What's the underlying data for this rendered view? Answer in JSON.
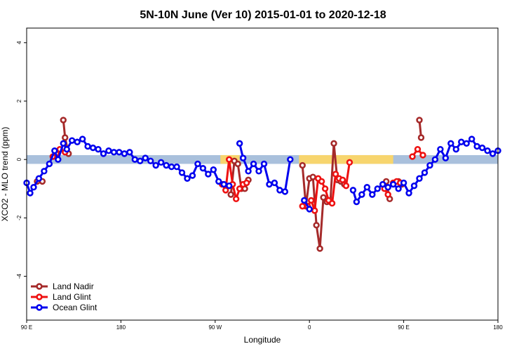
{
  "chart_data": {
    "type": "line",
    "title": "5N-10N June (Ver 10)   2015-01-01 to 2020-12-18",
    "xlabel": "Longitude",
    "ylabel": "XCO2 - MLO trend (ppm)",
    "xlim": [
      -90,
      180
    ],
    "ylim": [
      -5.5,
      4.5
    ],
    "x_ticks": [
      {
        "value": -90,
        "label": "90 E"
      },
      {
        "value": -36,
        "label": "180"
      },
      {
        "value": 18,
        "label": "90 W"
      },
      {
        "value": 72,
        "label": "0"
      },
      {
        "value": 126,
        "label": "90 E"
      },
      {
        "value": 180,
        "label": "180"
      }
    ],
    "y_ticks": [
      {
        "value": -4,
        "label": "-4"
      },
      {
        "value": -2,
        "label": "-2"
      },
      {
        "value": 0,
        "label": "0"
      },
      {
        "value": 2,
        "label": "2"
      },
      {
        "value": 4,
        "label": "4"
      }
    ],
    "band": {
      "ymin": -0.15,
      "ymax": 0.15,
      "color": "#a9c0dc",
      "highlight_color": "#f7d56e",
      "highlight_ranges": [
        [
          21,
          32
        ],
        [
          66,
          120
        ]
      ]
    },
    "legend_position": "bottom-left",
    "series": [
      {
        "name": "Land Nadir",
        "color": "#a52a2a",
        "segments": [
          {
            "x": [
              -84,
              -81
            ],
            "y": [
              -0.75,
              -0.75
            ]
          },
          {
            "x": [
              -69,
              -68,
              -66
            ],
            "y": [
              1.35,
              0.75,
              0.2
            ]
          },
          {
            "x": [
              27,
              29,
              31,
              33,
              35,
              37
            ],
            "y": [
              -1.2,
              -0.05,
              -0.15,
              -1.0,
              -1.0,
              -0.7
            ]
          },
          {
            "x": [
              68,
              70,
              72,
              74,
              76,
              78,
              80,
              82,
              84,
              86,
              88,
              90,
              92
            ],
            "y": [
              -0.2,
              -1.6,
              -0.65,
              -0.6,
              -2.25,
              -3.05,
              -1.3,
              -1.45,
              -1.45,
              0.55,
              -0.7,
              -0.75,
              -0.85
            ]
          },
          {
            "x": [
              116,
              118
            ],
            "y": [
              -0.75,
              -1.35
            ]
          },
          {
            "x": [
              123,
              125
            ],
            "y": [
              -0.75,
              -0.85
            ]
          },
          {
            "x": [
              135,
              136
            ],
            "y": [
              1.35,
              0.75
            ]
          }
        ]
      },
      {
        "name": "Land Glint",
        "color": "#ee1111",
        "segments": [
          {
            "x": [
              -75,
              -73,
              -71,
              -68
            ],
            "y": [
              0.1,
              0.2,
              0.35,
              0.25
            ]
          },
          {
            "x": [
              22,
              24,
              26,
              28,
              30,
              32,
              34,
              36
            ],
            "y": [
              -0.85,
              -1.05,
              0.0,
              -0.85,
              -1.35,
              -1.0,
              -0.85,
              -0.8
            ]
          },
          {
            "x": [
              68,
              71,
              73,
              75,
              77,
              79,
              81,
              83,
              85,
              87,
              89,
              91,
              93,
              95
            ],
            "y": [
              -1.6,
              -1.6,
              -1.4,
              -1.75,
              -0.65,
              -0.75,
              -1.0,
              -1.4,
              -1.5,
              -0.5,
              -0.65,
              -0.7,
              -0.9,
              -0.1
            ]
          },
          {
            "x": [
              115,
              117
            ],
            "y": [
              -1.0,
              -1.2
            ]
          },
          {
            "x": [
              120,
              122,
              124
            ],
            "y": [
              -0.8,
              -0.75,
              -0.8
            ]
          },
          {
            "x": [
              131,
              134,
              137
            ],
            "y": [
              0.1,
              0.35,
              0.15
            ]
          }
        ]
      },
      {
        "name": "Ocean Glint",
        "color": "#0000ee",
        "segments": [
          {
            "x": [
              -90,
              -88,
              -86,
              -83,
              -80,
              -77,
              -74,
              -72,
              -69,
              -67,
              -64,
              -61,
              -58,
              -55,
              -52,
              -49,
              -46,
              -43,
              -40,
              -37,
              -34,
              -31,
              -28,
              -25,
              -22,
              -19,
              -16,
              -13,
              -10,
              -7,
              -4,
              -1,
              2,
              5,
              8,
              11,
              14,
              17,
              20,
              23,
              26
            ],
            "y": [
              -0.8,
              -1.15,
              -0.95,
              -0.65,
              -0.4,
              -0.15,
              0.3,
              0.0,
              0.55,
              0.35,
              0.65,
              0.6,
              0.7,
              0.45,
              0.4,
              0.35,
              0.2,
              0.3,
              0.25,
              0.25,
              0.2,
              0.25,
              0.0,
              -0.05,
              0.05,
              -0.05,
              -0.2,
              -0.1,
              -0.2,
              -0.25,
              -0.25,
              -0.45,
              -0.65,
              -0.55,
              -0.15,
              -0.3,
              -0.5,
              -0.35,
              -0.75,
              -0.85,
              -0.9
            ]
          },
          {
            "x": [
              32,
              34,
              37,
              40,
              43,
              46,
              49,
              52,
              55,
              58,
              61
            ],
            "y": [
              0.55,
              0.05,
              -0.4,
              -0.15,
              -0.4,
              -0.15,
              -0.85,
              -0.8,
              -1.05,
              -1.1,
              0.0
            ]
          },
          {
            "x": [
              69,
              72
            ],
            "y": [
              -1.4,
              -1.7
            ]
          },
          {
            "x": [
              97,
              99,
              102,
              105,
              108,
              111,
              114,
              117,
              120,
              123,
              126,
              129,
              132,
              135,
              138,
              141,
              144,
              147,
              150,
              153,
              156,
              159,
              162,
              165,
              168,
              171,
              174,
              177,
              180
            ],
            "y": [
              -1.05,
              -1.45,
              -1.2,
              -0.95,
              -1.2,
              -1.0,
              -0.85,
              -0.95,
              -0.85,
              -1.0,
              -0.8,
              -1.15,
              -0.9,
              -0.65,
              -0.45,
              -0.2,
              0.0,
              0.35,
              0.05,
              0.55,
              0.35,
              0.6,
              0.55,
              0.7,
              0.45,
              0.4,
              0.3,
              0.2,
              0.3
            ]
          }
        ]
      }
    ]
  }
}
